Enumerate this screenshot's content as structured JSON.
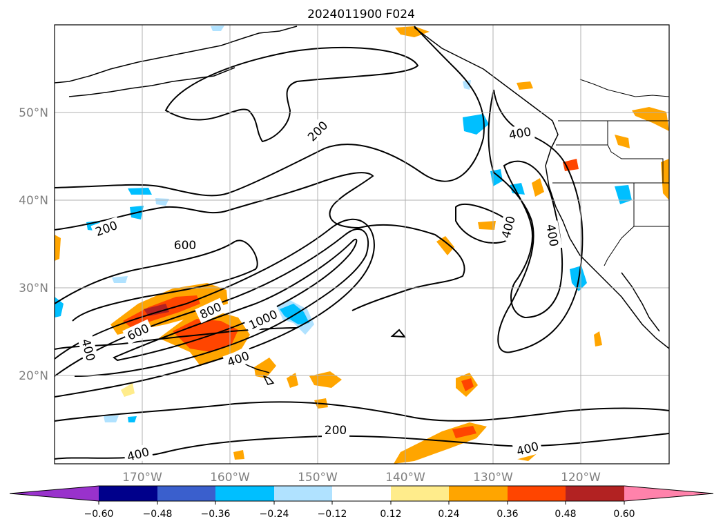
{
  "title": "2024011900 F024",
  "map": {
    "lat_labels": [
      "50°N",
      "40°N",
      "30°N",
      "20°N"
    ],
    "lon_labels": [
      "170°W",
      "160°W",
      "150°W",
      "140°W",
      "130°W",
      "120°W"
    ],
    "contour_labels": [
      "200",
      "200",
      "600",
      "800",
      "600",
      "400",
      "1000",
      "400",
      "200",
      "400",
      "400",
      "400",
      "400",
      "400"
    ]
  },
  "colorbar": {
    "ticks": [
      "−0.60",
      "−0.48",
      "−0.36",
      "−0.24",
      "−0.12",
      "0.12",
      "0.24",
      "0.36",
      "0.48",
      "0.60"
    ],
    "colors": [
      "#9932cc",
      "#00008b",
      "#3a5fcd",
      "#00bfff",
      "#b0e2ff",
      "#ffffff",
      "#ffec8b",
      "#ffa500",
      "#ff4500",
      "#b22222",
      "#ff82ab"
    ]
  }
}
